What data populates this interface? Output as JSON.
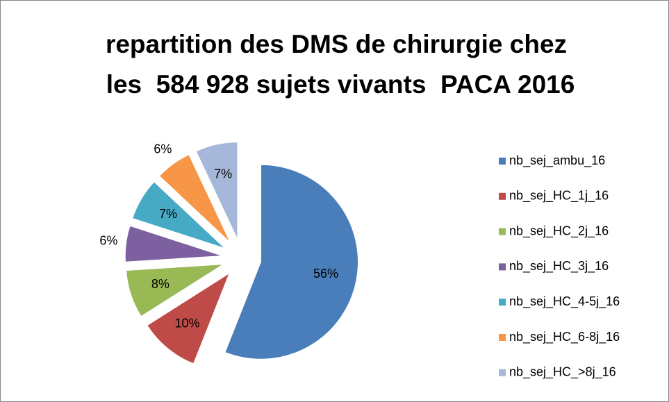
{
  "chart_data": {
    "type": "pie",
    "title": [
      "repartition des DMS de chirurgie chez",
      "les  584 928 sujets vivants  PACA 2016"
    ],
    "categories": [
      "nb_sej_ambu_16",
      "nb_sej_HC_1j_16",
      "nb_sej_HC_2j_16",
      "nb_sej_HC_3j_16",
      "nb_sej_HC_4-5j_16",
      "nb_sej_HC_6-8j_16",
      "nb_sej_HC_>8j_16"
    ],
    "values": [
      56,
      10,
      8,
      6,
      7,
      6,
      7
    ],
    "value_labels": [
      "56%",
      "10%",
      "8%",
      "6%",
      "7%",
      "6%",
      "7%"
    ],
    "colors": [
      "#4a7ebb",
      "#be4b48",
      "#98b954",
      "#7d60a0",
      "#46aac5",
      "#f79646",
      "#a5b8d9"
    ],
    "legend": "right"
  }
}
